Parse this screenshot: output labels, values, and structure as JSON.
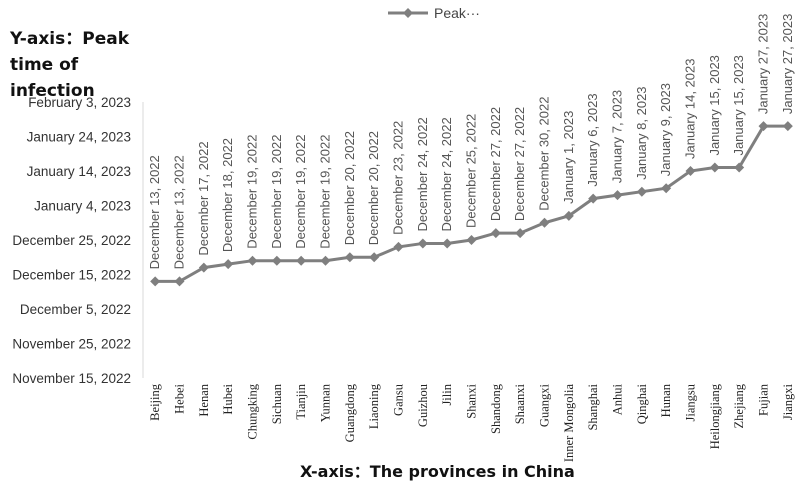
{
  "chart_data": {
    "type": "line",
    "ytitle": "Y-axis：Peak time of infection",
    "xtitle": "X-axis：The provinces in China",
    "legend": "Peak···",
    "line_color": "#7f7f7f",
    "y_ticks": [
      "February 3, 2023",
      "January 24, 2023",
      "January 14, 2023",
      "January 4, 2023",
      "December 25, 2022",
      "December 15, 2022",
      "December 5, 2022",
      "November 25, 2022",
      "November 15, 2022"
    ],
    "ylim": [
      "November 15, 2022",
      "February 3, 2023"
    ],
    "categories": [
      "Beijing",
      "Hebei",
      "Henan",
      "Hubei",
      "Chungking",
      "Sichuan",
      "Tianjin",
      "Yunnan",
      "Guangdong",
      "Liaoning",
      "Gansu",
      "Guizhou",
      "Jilin",
      "Shanxi",
      "Shandong",
      "Shaanxi",
      "Guangxi",
      "Inner Mongolia",
      "Shanghai",
      "Anhui",
      "Qinghai",
      "Hunan",
      "Jiangsu",
      "Heilongjiang",
      "Zhejiang",
      "Fujian",
      "Jiangxi"
    ],
    "values": [
      "2022-12-13",
      "2022-12-13",
      "2022-12-17",
      "2022-12-18",
      "2022-12-19",
      "2022-12-19",
      "2022-12-19",
      "2022-12-19",
      "2022-12-20",
      "2022-12-20",
      "2022-12-23",
      "2022-12-24",
      "2022-12-24",
      "2022-12-25",
      "2022-12-27",
      "2022-12-27",
      "2022-12-30",
      "2023-01-01",
      "2023-01-06",
      "2023-01-07",
      "2023-01-08",
      "2023-01-09",
      "2023-01-14",
      "2023-01-15",
      "2023-01-15",
      "2023-01-27",
      "2023-01-27"
    ],
    "labels": [
      "December 13, 2022",
      "December 13, 2022",
      "December 17, 2022",
      "December 18, 2022",
      "December 19, 2022",
      "December 19, 2022",
      "December 19, 2022",
      "December 19, 2022",
      "December 20, 2022",
      "December 20, 2022",
      "December 23, 2022",
      "December 24, 2022",
      "December 24, 2022",
      "December 25, 2022",
      "December 27, 2022",
      "December 27, 2022",
      "December 30, 2022",
      "January 1, 2023",
      "January 6, 2023",
      "January 7, 2023",
      "January 8, 2023",
      "January 9, 2023",
      "January 14, 2023",
      "January 15, 2023",
      "January 15, 2023",
      "January 27, 2023",
      "January 27, 2023"
    ]
  }
}
